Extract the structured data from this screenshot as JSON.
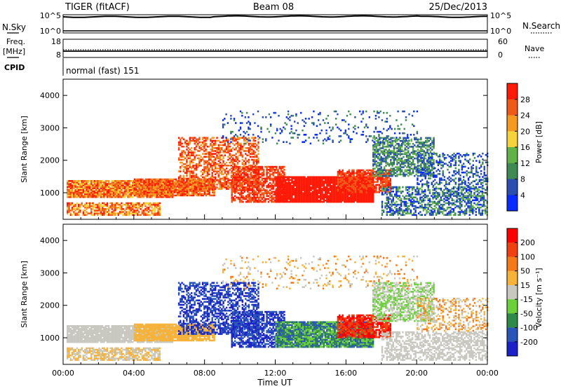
{
  "header": {
    "radar": "TIGER (fitACF)",
    "beam": "Beam 08",
    "date": "25/Dec/2013"
  },
  "nsky_panel": {
    "left_label": "N.Sky",
    "right_label": "N.Search",
    "left_ticks": [
      "10^5",
      "10^0"
    ],
    "right_ticks": [
      "10^5",
      "10^0"
    ]
  },
  "freq_panel": {
    "left_label_line1": "Freq.",
    "left_label_line2": "[MHz]",
    "right_label": "Nave",
    "left_ticks": [
      "18",
      "8"
    ],
    "right_ticks": [
      "60",
      "0"
    ]
  },
  "cpid": {
    "label": "CPID",
    "mode": "normal (fast) 151"
  },
  "colors": {
    "power": [
      "#0a2bff",
      "#2a4fb0",
      "#3f8a52",
      "#62b24a",
      "#f4d43a",
      "#f59a20",
      "#f05a18",
      "#ff1a08"
    ],
    "velocity": [
      "#1b22c8",
      "#2a55b8",
      "#2f8a4a",
      "#6cd03c",
      "#c8c8c0",
      "#f7b23a",
      "#f47a18",
      "#f04010",
      "#ff0000"
    ]
  },
  "chart_data": [
    {
      "type": "heatmap",
      "panel": "power",
      "ylabel": "Slant Range [km]",
      "y_ticks": [
        "4000",
        "3000",
        "2000",
        "1000"
      ],
      "ylim": [
        180,
        4500
      ],
      "xlim": [
        "00:00",
        "24:00"
      ],
      "colorbar": {
        "label": "Power [dB]",
        "ticks": [
          "28",
          "24",
          "20",
          "16",
          "12",
          "8",
          "4"
        ],
        "range": [
          0,
          32
        ]
      },
      "grid": false
    },
    {
      "type": "heatmap",
      "panel": "velocity",
      "ylabel": "Slant Range [km]",
      "y_ticks": [
        "4000",
        "3000",
        "2000",
        "1000"
      ],
      "ylim": [
        180,
        4500
      ],
      "x_ticks": [
        "00:00",
        "04:00",
        "08:00",
        "12:00",
        "16:00",
        "20:00",
        "00:00"
      ],
      "xlabel": "Time UT",
      "colorbar": {
        "label": "Velocity [m s⁻¹]",
        "ticks": [
          "200",
          "100",
          "50",
          "15",
          "-15",
          "-50",
          "-100",
          "-200"
        ],
        "range": [
          -250,
          250
        ]
      },
      "grid": false
    }
  ]
}
